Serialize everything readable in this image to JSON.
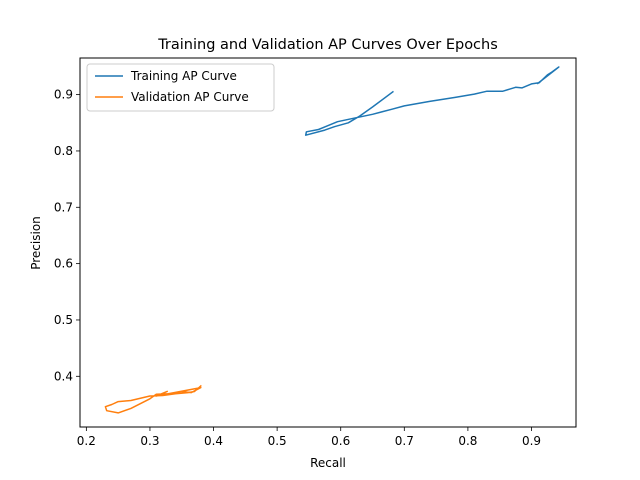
{
  "chart_data": {
    "type": "line",
    "title": "Training and Validation AP Curves Over Epochs",
    "xlabel": "Recall",
    "ylabel": "Precision",
    "xlim": [
      0.19,
      0.97
    ],
    "ylim": [
      0.31,
      0.965
    ],
    "xticks": [
      0.2,
      0.3,
      0.4,
      0.5,
      0.6,
      0.7,
      0.8,
      0.9
    ],
    "yticks": [
      0.4,
      0.5,
      0.6,
      0.7,
      0.8,
      0.9
    ],
    "xtick_labels": [
      "0.2",
      "0.3",
      "0.4",
      "0.5",
      "0.6",
      "0.7",
      "0.8",
      "0.9"
    ],
    "ytick_labels": [
      "0.4",
      "0.5",
      "0.6",
      "0.7",
      "0.8",
      "0.9"
    ],
    "grid": false,
    "legend_position": "top-left",
    "series": [
      {
        "name": "Training AP Curve",
        "color": "#1f77b4",
        "points": [
          [
            0.682,
            0.905
          ],
          [
            0.65,
            0.878
          ],
          [
            0.63,
            0.862
          ],
          [
            0.612,
            0.85
          ],
          [
            0.59,
            0.843
          ],
          [
            0.575,
            0.837
          ],
          [
            0.545,
            0.828
          ],
          [
            0.546,
            0.834
          ],
          [
            0.565,
            0.838
          ],
          [
            0.595,
            0.852
          ],
          [
            0.62,
            0.858
          ],
          [
            0.65,
            0.865
          ],
          [
            0.68,
            0.874
          ],
          [
            0.7,
            0.88
          ],
          [
            0.74,
            0.888
          ],
          [
            0.78,
            0.895
          ],
          [
            0.81,
            0.901
          ],
          [
            0.83,
            0.906
          ],
          [
            0.855,
            0.906
          ],
          [
            0.875,
            0.913
          ],
          [
            0.885,
            0.912
          ],
          [
            0.9,
            0.919
          ],
          [
            0.912,
            0.921
          ],
          [
            0.925,
            0.935
          ],
          [
            0.932,
            0.94
          ],
          [
            0.943,
            0.949
          ],
          [
            0.91,
            0.92
          ]
        ]
      },
      {
        "name": "Validation AP Curve",
        "color": "#ff7f0e",
        "points": [
          [
            0.38,
            0.383
          ],
          [
            0.37,
            0.373
          ],
          [
            0.36,
            0.371
          ],
          [
            0.34,
            0.369
          ],
          [
            0.32,
            0.366
          ],
          [
            0.3,
            0.365
          ],
          [
            0.27,
            0.357
          ],
          [
            0.25,
            0.355
          ],
          [
            0.24,
            0.35
          ],
          [
            0.23,
            0.346
          ],
          [
            0.232,
            0.339
          ],
          [
            0.25,
            0.335
          ],
          [
            0.27,
            0.343
          ],
          [
            0.3,
            0.36
          ],
          [
            0.31,
            0.368
          ],
          [
            0.33,
            0.369
          ],
          [
            0.35,
            0.373
          ],
          [
            0.365,
            0.371
          ],
          [
            0.38,
            0.38
          ],
          [
            0.31,
            0.365
          ],
          [
            0.327,
            0.373
          ]
        ]
      }
    ]
  }
}
